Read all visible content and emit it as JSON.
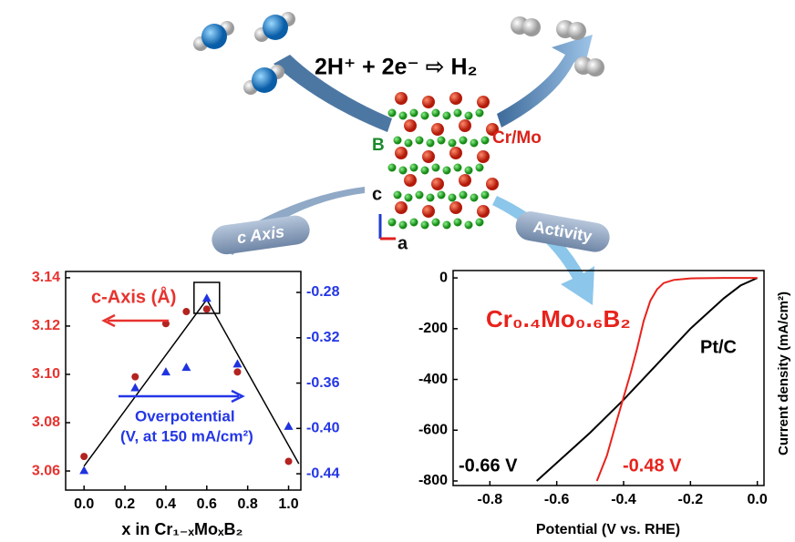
{
  "diagram": {
    "reaction": "2H⁺ + 2e⁻ ⇨ H₂",
    "boron": "B",
    "metal": "Cr/Mo",
    "c_axis": "c",
    "a_axis": "a",
    "pill_left": "c Axis",
    "pill_right": "Activity"
  },
  "chart_data": [
    {
      "type": "scatter",
      "xlabel": "x in Cr₁₋ₓMoₓB₂",
      "x": [
        0,
        0.25,
        0.4,
        0.5,
        0.6,
        0.75,
        1.0
      ],
      "series": [
        {
          "color": "#b3231f",
          "values": [
            3.066,
            3.099,
            3.121,
            3.126,
            3.127,
            3.101,
            3.064
          ]
        },
        {
          "color": "#1f33e0",
          "axis": "y2",
          "values": [
            -0.437,
            -0.364,
            -0.35,
            -0.346,
            -0.285,
            -0.343,
            -0.398
          ]
        }
      ],
      "fit": {
        "color": "#000000",
        "x": [
          0,
          0.6,
          1.05
        ],
        "values": [
          3.062,
          3.131,
          3.063
        ]
      },
      "annotations": [
        "c-Axis (Å)",
        "Overpotential",
        "(V, at 150 mA/cm²)"
      ],
      "xlim": [
        -0.09,
        1.06
      ],
      "xticks": [
        {
          "value": 0,
          "label": "0.0"
        },
        0.2,
        0.4,
        0.6,
        0.8,
        {
          "value": 1,
          "label": "1.0"
        }
      ],
      "ylim": [
        3.0521,
        3.1426
      ],
      "yticks": [
        3.06,
        3.08,
        {
          "value": 3.1,
          "label": "3.10"
        },
        3.12,
        3.14
      ],
      "y_color": "#e8322e",
      "y2lim": [
        -0.4544,
        -0.2615
      ],
      "y2ticks": [
        -0.44,
        {
          "value": -0.4,
          "label": "-0.40"
        },
        -0.36,
        -0.32,
        -0.28
      ],
      "y2_color": "#2436e6"
    },
    {
      "type": "line",
      "xlabel": "Potential (V vs. RHE)",
      "ylabel": "Current density (mA/cm²)",
      "series": [
        {
          "name": "Pt/C",
          "color": "#000000",
          "x": [
            -0.66,
            -0.5,
            -0.4,
            -0.3,
            -0.2,
            -0.1,
            -0.05,
            0
          ],
          "values": [
            -800,
            -610,
            -480,
            -340,
            -200,
            -80,
            -30,
            0
          ]
        },
        {
          "name": "Cr₀.₄Mo₀.₆B₂",
          "color": "#e8221c",
          "x": [
            -0.48,
            -0.45,
            -0.42,
            -0.4,
            -0.38,
            -0.36,
            -0.34,
            -0.32,
            -0.3,
            -0.28,
            -0.25,
            -0.2,
            -0.1,
            0
          ],
          "values": [
            -800,
            -700,
            -560,
            -470,
            -380,
            -280,
            -170,
            -90,
            -45,
            -20,
            -8,
            -2,
            0,
            0
          ]
        }
      ],
      "annotations": [
        "-0.66 V",
        "-0.48 V"
      ],
      "xlim": [
        -0.91,
        0.02
      ],
      "xticks": [
        -0.8,
        -0.6,
        -0.4,
        -0.2,
        {
          "value": 0,
          "label": "0.0"
        }
      ],
      "ylim": [
        -818,
        29
      ],
      "yticks": [
        -800,
        -600,
        -400,
        -200,
        0
      ]
    }
  ]
}
